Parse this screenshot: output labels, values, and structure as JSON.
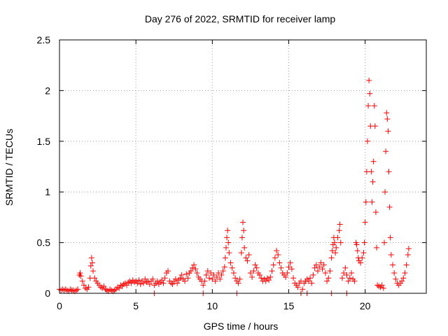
{
  "chart_data": {
    "type": "scatter",
    "title": "Day 276 of 2022, SRMTID for receiver lamp",
    "xlabel": "GPS time / hours",
    "ylabel": "SRMTID / TECUs",
    "xlim": [
      0,
      24
    ],
    "ylim": [
      0,
      2.5
    ],
    "xticks": [
      0,
      5,
      10,
      15,
      20
    ],
    "yticks": [
      0,
      0.5,
      1,
      1.5,
      2,
      2.5
    ],
    "xtick_labels": [
      "0",
      "5",
      "10",
      "15",
      "20"
    ],
    "ytick_labels": [
      "0",
      "0.5",
      "1",
      "1.5",
      "2",
      "2.5"
    ],
    "grid": true,
    "marker": "+",
    "color": "#ff0000",
    "series": [
      {
        "name": "receiver lamp",
        "points": [
          [
            0.0,
            0.04
          ],
          [
            0.1,
            0.03
          ],
          [
            0.2,
            0.04
          ],
          [
            0.3,
            0.03
          ],
          [
            0.4,
            0.04
          ],
          [
            0.5,
            0.03
          ],
          [
            0.6,
            0.02
          ],
          [
            0.7,
            0.04
          ],
          [
            0.8,
            0.03
          ],
          [
            0.9,
            0.03
          ],
          [
            1.0,
            0.02
          ],
          [
            1.1,
            0.03
          ],
          [
            1.2,
            0.04
          ],
          [
            1.3,
            0.18
          ],
          [
            1.35,
            0.2
          ],
          [
            1.4,
            0.17
          ],
          [
            1.5,
            0.12
          ],
          [
            1.6,
            0.08
          ],
          [
            1.7,
            0.05
          ],
          [
            1.8,
            0.04
          ],
          [
            1.9,
            0.06
          ],
          [
            2.0,
            0.15
          ],
          [
            2.05,
            0.27
          ],
          [
            2.1,
            0.35
          ],
          [
            2.15,
            0.3
          ],
          [
            2.2,
            0.22
          ],
          [
            2.3,
            0.15
          ],
          [
            2.4,
            0.12
          ],
          [
            2.5,
            0.1
          ],
          [
            2.6,
            0.08
          ],
          [
            2.7,
            0.06
          ],
          [
            2.8,
            0.05
          ],
          [
            2.9,
            0.07
          ],
          [
            3.0,
            0.04
          ],
          [
            3.1,
            0.03
          ],
          [
            3.2,
            0.02
          ],
          [
            3.3,
            0.04
          ],
          [
            3.4,
            0.03
          ],
          [
            3.5,
            0.02
          ],
          [
            3.6,
            0.03
          ],
          [
            3.7,
            0.04
          ],
          [
            3.8,
            0.06
          ],
          [
            3.9,
            0.05
          ],
          [
            4.0,
            0.08
          ],
          [
            4.1,
            0.07
          ],
          [
            4.2,
            0.09
          ],
          [
            4.3,
            0.1
          ],
          [
            4.4,
            0.08
          ],
          [
            4.5,
            0.11
          ],
          [
            4.6,
            0.12
          ],
          [
            4.7,
            0.1
          ],
          [
            4.8,
            0.13
          ],
          [
            4.9,
            0.11
          ],
          [
            5.0,
            0.12
          ],
          [
            5.1,
            0.1
          ],
          [
            5.2,
            0.13
          ],
          [
            5.3,
            0.09
          ],
          [
            5.4,
            0.12
          ],
          [
            5.5,
            0.1
          ],
          [
            5.6,
            0.14
          ],
          [
            5.7,
            0.11
          ],
          [
            5.8,
            0.12
          ],
          [
            5.9,
            0.09
          ],
          [
            6.0,
            0.12
          ],
          [
            6.1,
            0.14
          ],
          [
            6.2,
            0.08
          ],
          [
            6.3,
            0.1
          ],
          [
            6.4,
            0.12
          ],
          [
            6.5,
            0.09
          ],
          [
            6.6,
            0.11
          ],
          [
            6.7,
            0.13
          ],
          [
            6.8,
            0.1
          ],
          [
            6.9,
            0.15
          ],
          [
            7.0,
            0.2
          ],
          [
            7.1,
            0.22
          ],
          [
            7.2,
            0.12
          ],
          [
            7.3,
            0.1
          ],
          [
            7.4,
            0.09
          ],
          [
            7.5,
            0.12
          ],
          [
            7.6,
            0.14
          ],
          [
            7.7,
            0.1
          ],
          [
            7.8,
            0.13
          ],
          [
            7.9,
            0.15
          ],
          [
            8.0,
            0.18
          ],
          [
            8.1,
            0.14
          ],
          [
            8.2,
            0.12
          ],
          [
            8.3,
            0.19
          ],
          [
            8.4,
            0.15
          ],
          [
            8.5,
            0.2
          ],
          [
            8.6,
            0.22
          ],
          [
            8.7,
            0.25
          ],
          [
            8.8,
            0.28
          ],
          [
            8.9,
            0.24
          ],
          [
            9.0,
            0.2
          ],
          [
            9.1,
            0.16
          ],
          [
            9.2,
            0.14
          ],
          [
            9.3,
            0.12
          ],
          [
            9.4,
            0.08
          ],
          [
            9.5,
            0.12
          ],
          [
            9.6,
            0.18
          ],
          [
            9.7,
            0.22
          ],
          [
            9.8,
            0.15
          ],
          [
            9.9,
            0.2
          ],
          [
            10.0,
            0.14
          ],
          [
            10.1,
            0.18
          ],
          [
            10.2,
            0.12
          ],
          [
            10.3,
            0.16
          ],
          [
            10.4,
            0.2
          ],
          [
            10.5,
            0.14
          ],
          [
            10.6,
            0.18
          ],
          [
            10.7,
            0.22
          ],
          [
            10.8,
            0.26
          ],
          [
            10.85,
            0.35
          ],
          [
            10.9,
            0.45
          ],
          [
            10.95,
            0.55
          ],
          [
            11.0,
            0.62
          ],
          [
            11.05,
            0.5
          ],
          [
            11.1,
            0.4
          ],
          [
            11.2,
            0.3
          ],
          [
            11.3,
            0.25
          ],
          [
            11.4,
            0.2
          ],
          [
            11.5,
            0.15
          ],
          [
            11.6,
            0.12
          ],
          [
            11.7,
            0.1
          ],
          [
            11.8,
            0.14
          ],
          [
            11.9,
            0.4
          ],
          [
            11.95,
            0.55
          ],
          [
            12.0,
            0.7
          ],
          [
            12.05,
            0.62
          ],
          [
            12.1,
            0.45
          ],
          [
            12.2,
            0.35
          ],
          [
            12.3,
            0.32
          ],
          [
            12.4,
            0.38
          ],
          [
            12.5,
            0.2
          ],
          [
            12.6,
            0.16
          ],
          [
            12.7,
            0.22
          ],
          [
            12.8,
            0.28
          ],
          [
            12.9,
            0.25
          ],
          [
            13.0,
            0.2
          ],
          [
            13.1,
            0.18
          ],
          [
            13.2,
            0.15
          ],
          [
            13.3,
            0.12
          ],
          [
            13.4,
            0.14
          ],
          [
            13.5,
            0.12
          ],
          [
            13.6,
            0.15
          ],
          [
            13.7,
            0.13
          ],
          [
            13.8,
            0.16
          ],
          [
            13.9,
            0.22
          ],
          [
            14.0,
            0.28
          ],
          [
            14.1,
            0.35
          ],
          [
            14.2,
            0.42
          ],
          [
            14.3,
            0.38
          ],
          [
            14.4,
            0.3
          ],
          [
            14.5,
            0.25
          ],
          [
            14.6,
            0.2
          ],
          [
            14.7,
            0.18
          ],
          [
            14.8,
            0.16
          ],
          [
            14.9,
            0.2
          ],
          [
            15.0,
            0.26
          ],
          [
            15.1,
            0.3
          ],
          [
            15.2,
            0.24
          ],
          [
            15.3,
            0.15
          ],
          [
            15.4,
            0.1
          ],
          [
            15.5,
            0.08
          ],
          [
            15.6,
            0.06
          ],
          [
            15.7,
            0.1
          ],
          [
            15.8,
            0.12
          ],
          [
            15.9,
            0.04
          ],
          [
            16.0,
            0.1
          ],
          [
            16.1,
            0.12
          ],
          [
            16.2,
            0.14
          ],
          [
            16.3,
            0.12
          ],
          [
            16.4,
            0.15
          ],
          [
            16.5,
            0.1
          ],
          [
            16.6,
            0.18
          ],
          [
            16.7,
            0.25
          ],
          [
            16.8,
            0.28
          ],
          [
            16.9,
            0.22
          ],
          [
            17.0,
            0.26
          ],
          [
            17.1,
            0.3
          ],
          [
            17.2,
            0.24
          ],
          [
            17.3,
            0.28
          ],
          [
            17.4,
            0.2
          ],
          [
            17.5,
            0.12
          ],
          [
            17.6,
            0.15
          ],
          [
            17.7,
            0.22
          ],
          [
            17.8,
            0.35
          ],
          [
            17.85,
            0.42
          ],
          [
            17.9,
            0.48
          ],
          [
            17.95,
            0.55
          ],
          [
            18.0,
            0.5
          ],
          [
            18.05,
            0.4
          ],
          [
            18.1,
            0.45
          ],
          [
            18.2,
            0.55
          ],
          [
            18.3,
            0.62
          ],
          [
            18.35,
            0.68
          ],
          [
            18.4,
            0.5
          ],
          [
            18.5,
            0.15
          ],
          [
            18.6,
            0.2
          ],
          [
            18.7,
            0.25
          ],
          [
            18.8,
            0.18
          ],
          [
            18.9,
            0.12
          ],
          [
            19.0,
            0.15
          ],
          [
            19.1,
            0.2
          ],
          [
            19.2,
            0.14
          ],
          [
            19.3,
            0.12
          ],
          [
            19.4,
            0.5
          ],
          [
            19.45,
            0.48
          ],
          [
            19.5,
            0.42
          ],
          [
            19.55,
            0.35
          ],
          [
            19.6,
            0.32
          ],
          [
            19.7,
            0.3
          ],
          [
            19.8,
            0.35
          ],
          [
            19.9,
            0.4
          ],
          [
            19.95,
            0.5
          ],
          [
            20.0,
            0.7
          ],
          [
            20.05,
            0.9
          ],
          [
            20.1,
            1.2
          ],
          [
            20.15,
            1.5
          ],
          [
            20.2,
            1.85
          ],
          [
            20.25,
            2.1
          ],
          [
            20.3,
            1.97
          ],
          [
            20.35,
            1.65
          ],
          [
            20.4,
            1.2
          ],
          [
            20.45,
            0.9
          ],
          [
            20.5,
            1.1
          ],
          [
            20.55,
            1.3
          ],
          [
            20.6,
            1.85
          ],
          [
            20.65,
            1.65
          ],
          [
            20.7,
            0.8
          ],
          [
            20.75,
            0.45
          ],
          [
            20.8,
            0.08
          ],
          [
            20.9,
            0.07
          ],
          [
            21.0,
            0.06
          ],
          [
            21.1,
            0.08
          ],
          [
            21.2,
            0.05
          ],
          [
            21.25,
            0.5
          ],
          [
            21.3,
            1.0
          ],
          [
            21.35,
            1.4
          ],
          [
            21.4,
            1.78
          ],
          [
            21.45,
            1.72
          ],
          [
            21.5,
            1.6
          ],
          [
            21.55,
            1.2
          ],
          [
            21.6,
            0.85
          ],
          [
            21.65,
            0.55
          ],
          [
            21.7,
            0.38
          ],
          [
            21.8,
            0.28
          ],
          [
            21.9,
            0.2
          ],
          [
            22.0,
            0.14
          ],
          [
            22.1,
            0.1
          ],
          [
            22.2,
            0.08
          ],
          [
            22.3,
            0.1
          ],
          [
            22.4,
            0.12
          ],
          [
            22.5,
            0.15
          ],
          [
            22.6,
            0.2
          ],
          [
            22.7,
            0.28
          ],
          [
            22.8,
            0.38
          ],
          [
            22.85,
            0.44
          ],
          [
            6.2,
            0.0
          ],
          [
            9.4,
            0.0
          ],
          [
            11.6,
            0.0
          ],
          [
            15.8,
            0.0
          ],
          [
            16.2,
            0.0
          ],
          [
            17.8,
            0.0
          ],
          [
            18.8,
            0.0
          ]
        ]
      }
    ]
  }
}
